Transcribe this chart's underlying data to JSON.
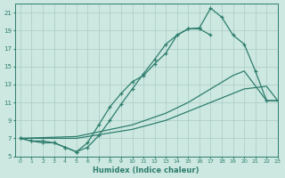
{
  "xlabel": "Humidex (Indice chaleur)",
  "bg_color": "#cce8e0",
  "line_color": "#2e7d6e",
  "grid_color": "#aaccc4",
  "xmin": -0.5,
  "xmax": 23,
  "ymin": 5,
  "ymax": 22,
  "yticks": [
    5,
    7,
    9,
    11,
    13,
    15,
    17,
    19,
    21
  ],
  "xticks": [
    0,
    1,
    2,
    3,
    4,
    5,
    6,
    7,
    8,
    9,
    10,
    11,
    12,
    13,
    14,
    15,
    16,
    17,
    18,
    19,
    20,
    21,
    22,
    23
  ],
  "line1_x": [
    0,
    1,
    2,
    3,
    4,
    5,
    6,
    7,
    8,
    9,
    10,
    11,
    12,
    13,
    14,
    15,
    16,
    17
  ],
  "line1_y": [
    7,
    6.7,
    6.7,
    6.5,
    6.0,
    5.5,
    6.5,
    8.5,
    10.5,
    12.0,
    13.3,
    14.0,
    15.3,
    16.5,
    18.5,
    19.2,
    19.2,
    18.5
  ],
  "line2_x": [
    0,
    1,
    2,
    3,
    4,
    5,
    6,
    7,
    8,
    9,
    10,
    11,
    12,
    13,
    14,
    15,
    16,
    17,
    18,
    19,
    20,
    21,
    22,
    23
  ],
  "line2_y": [
    7,
    6.7,
    6.5,
    6.5,
    6.0,
    5.5,
    6.0,
    7.3,
    9.0,
    10.8,
    12.5,
    14.2,
    15.8,
    17.5,
    18.5,
    19.2,
    19.3,
    21.5,
    20.5,
    18.5,
    17.5,
    14.5,
    11.2,
    11.2
  ],
  "line3_x": [
    0,
    5,
    10,
    13,
    15,
    17,
    19,
    20,
    22,
    23
  ],
  "line3_y": [
    7,
    7.0,
    8.0,
    9.0,
    10.0,
    11.0,
    12.0,
    12.5,
    12.8,
    11.2
  ],
  "line4_x": [
    0,
    5,
    10,
    13,
    15,
    17,
    19,
    20,
    22,
    23
  ],
  "line4_y": [
    7,
    7.2,
    8.5,
    9.8,
    11.0,
    12.5,
    14.0,
    14.5,
    11.2,
    11.2
  ]
}
